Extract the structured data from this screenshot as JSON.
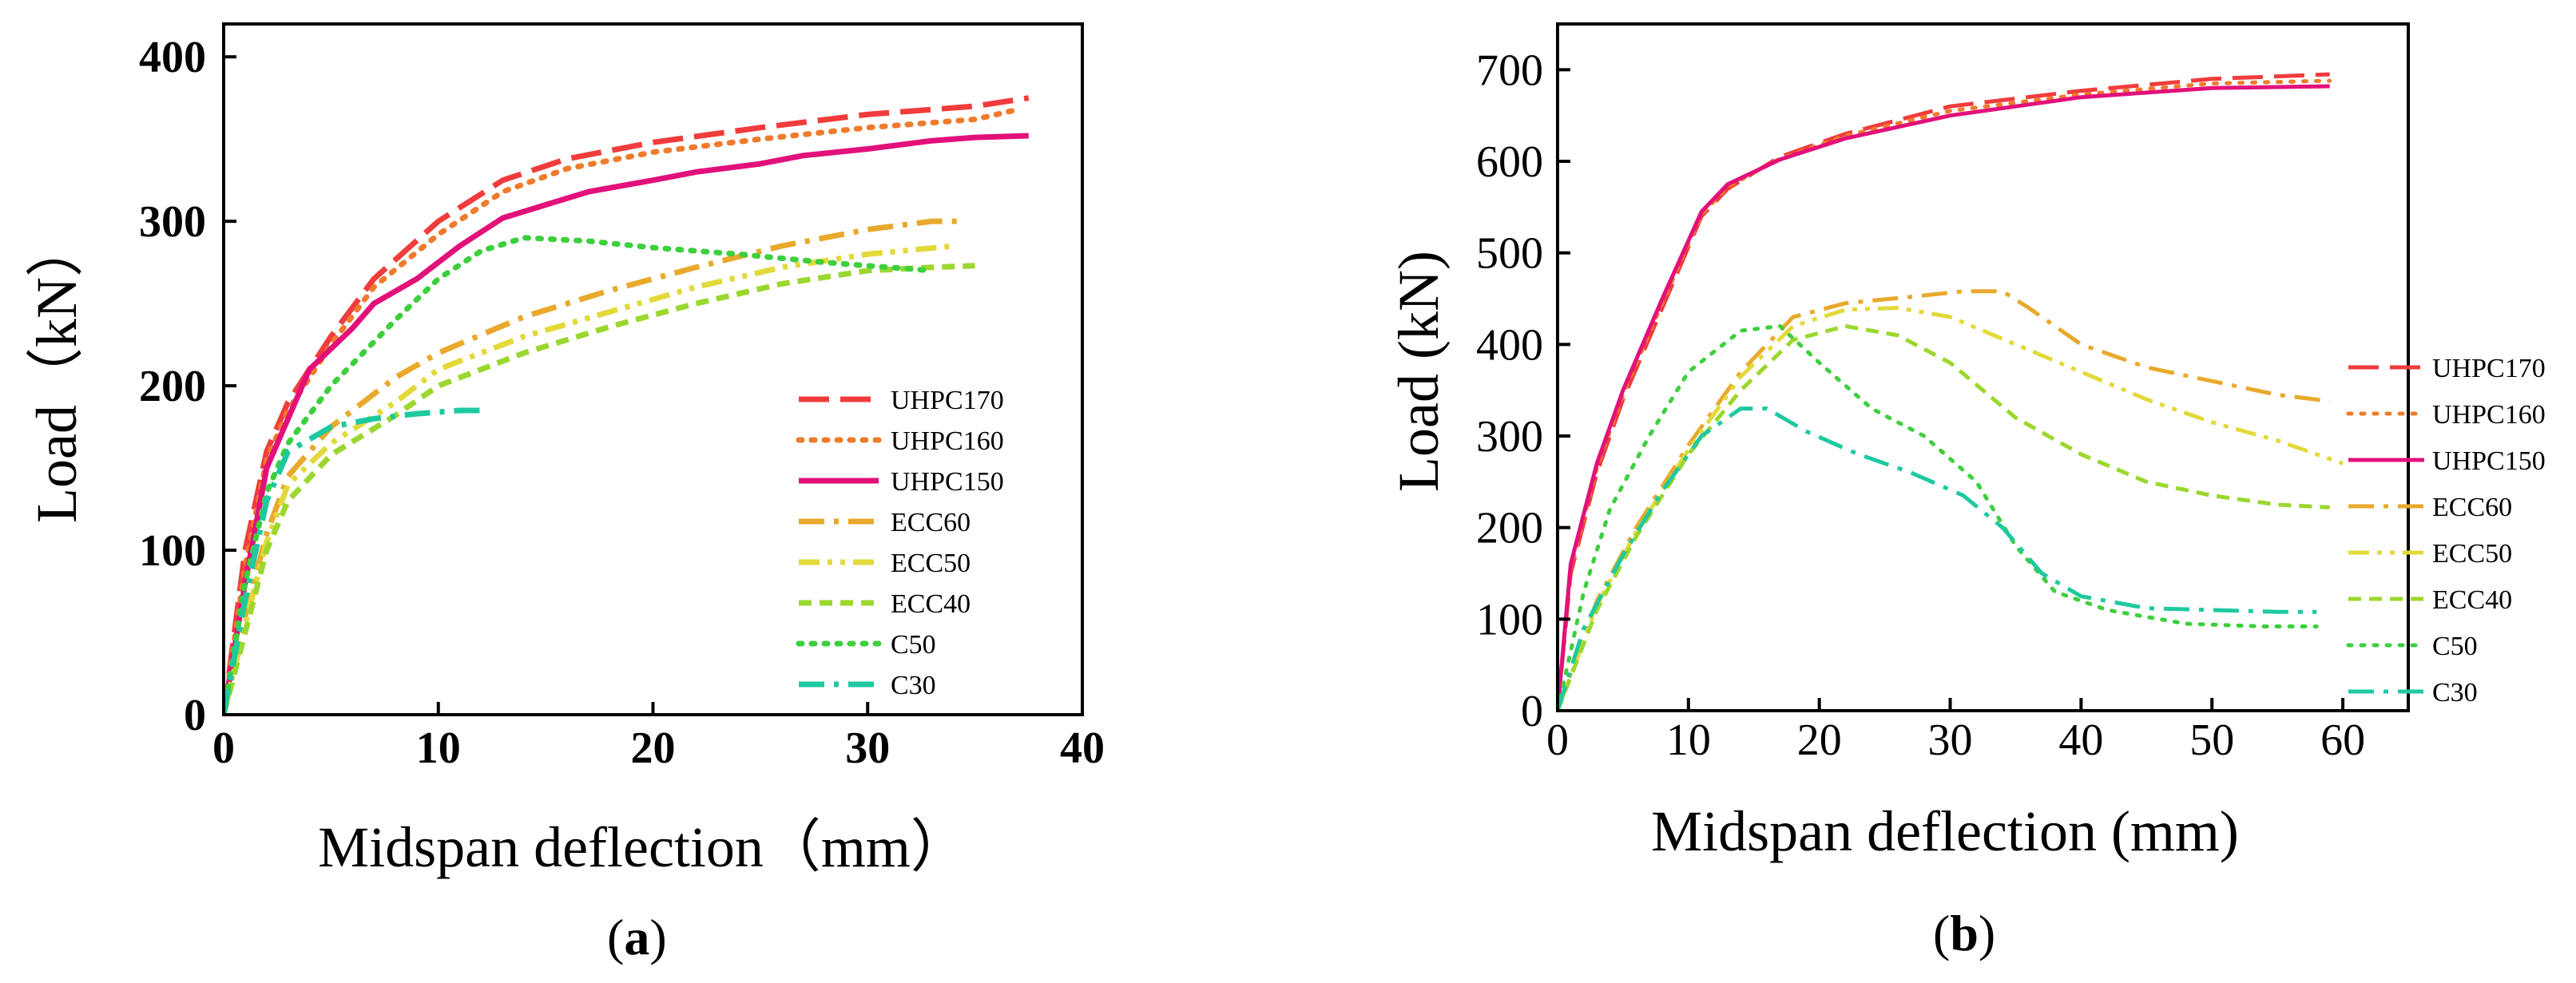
{
  "chart_data": [
    {
      "type": "line",
      "panel": "a",
      "subtitle_open": "(",
      "subtitle_letter": "a",
      "subtitle_close": ")",
      "xlabel": "Midspan deflection（mm）",
      "ylabel": "Load（kN）",
      "xlim": [
        0,
        40
      ],
      "ylim": [
        0,
        420
      ],
      "xticks": [
        0,
        10,
        20,
        30,
        40
      ],
      "yticks": [
        0,
        100,
        200,
        300,
        400
      ],
      "legend_position": "right",
      "series": [
        {
          "name": "UHPC170",
          "color": "#f03c3c",
          "dash": "long-dash",
          "points": [
            [
              0,
              0
            ],
            [
              1,
              100
            ],
            [
              2,
              160
            ],
            [
              3,
              190
            ],
            [
              5,
              230
            ],
            [
              7,
              265
            ],
            [
              10,
              300
            ],
            [
              13,
              325
            ],
            [
              16,
              338
            ],
            [
              20,
              348
            ],
            [
              25,
              357
            ],
            [
              30,
              365
            ],
            [
              35,
              370
            ],
            [
              37.5,
              375
            ]
          ]
        },
        {
          "name": "UHPC160",
          "color": "#ef7b2c",
          "dash": "dot",
          "points": [
            [
              0,
              0
            ],
            [
              1,
              90
            ],
            [
              2,
              155
            ],
            [
              3,
              185
            ],
            [
              5,
              225
            ],
            [
              7,
              260
            ],
            [
              10,
              292
            ],
            [
              13,
              318
            ],
            [
              16,
              332
            ],
            [
              20,
              342
            ],
            [
              25,
              350
            ],
            [
              30,
              357
            ],
            [
              35,
              362
            ],
            [
              37,
              368
            ]
          ]
        },
        {
          "name": "UHPC150",
          "color": "#e2117a",
          "dash": "solid",
          "points": [
            [
              0,
              0
            ],
            [
              1,
              80
            ],
            [
              2,
              150
            ],
            [
              3,
              180
            ],
            [
              4,
              210
            ],
            [
              6,
              235
            ],
            [
              7,
              250
            ],
            [
              9,
              265
            ],
            [
              11,
              285
            ],
            [
              13,
              302
            ],
            [
              15,
              310
            ],
            [
              17,
              318
            ],
            [
              20,
              325
            ],
            [
              22,
              330
            ],
            [
              25,
              335
            ],
            [
              27,
              340
            ],
            [
              30,
              344
            ],
            [
              33,
              349
            ],
            [
              35,
              351
            ],
            [
              37.5,
              352
            ]
          ]
        },
        {
          "name": "ECC60",
          "color": "#e8a92c",
          "dash": "dash-dot",
          "points": [
            [
              0,
              0
            ],
            [
              1,
              60
            ],
            [
              2,
              110
            ],
            [
              3,
              145
            ],
            [
              5,
              175
            ],
            [
              8,
              205
            ],
            [
              10,
              220
            ],
            [
              14,
              242
            ],
            [
              18,
              258
            ],
            [
              22,
              272
            ],
            [
              26,
              285
            ],
            [
              30,
              295
            ],
            [
              33,
              300
            ],
            [
              34.5,
              300
            ]
          ]
        },
        {
          "name": "ECC50",
          "color": "#e2d93a",
          "dash": "dash-dot-dot",
          "points": [
            [
              0,
              0
            ],
            [
              1,
              55
            ],
            [
              2,
              105
            ],
            [
              3,
              140
            ],
            [
              5,
              165
            ],
            [
              8,
              190
            ],
            [
              10,
              210
            ],
            [
              14,
              230
            ],
            [
              18,
              245
            ],
            [
              22,
              260
            ],
            [
              26,
              272
            ],
            [
              30,
              280
            ],
            [
              34,
              285
            ]
          ]
        },
        {
          "name": "ECC40",
          "color": "#9bd72e",
          "dash": "short-dash",
          "points": [
            [
              0,
              0
            ],
            [
              1,
              50
            ],
            [
              2,
              100
            ],
            [
              3,
              130
            ],
            [
              5,
              158
            ],
            [
              8,
              182
            ],
            [
              10,
              200
            ],
            [
              14,
              220
            ],
            [
              18,
              236
            ],
            [
              22,
              250
            ],
            [
              26,
              262
            ],
            [
              30,
              270
            ],
            [
              33,
              272
            ],
            [
              35,
              273
            ]
          ]
        },
        {
          "name": "C50",
          "color": "#3ecf3e",
          "dash": "dot",
          "points": [
            [
              0,
              0
            ],
            [
              1,
              80
            ],
            [
              2,
              135
            ],
            [
              3,
              165
            ],
            [
              5,
              200
            ],
            [
              8,
              240
            ],
            [
              10,
              265
            ],
            [
              12,
              282
            ],
            [
              14,
              290
            ],
            [
              17,
              288
            ],
            [
              20,
              284
            ],
            [
              24,
              280
            ],
            [
              28,
              275
            ],
            [
              31,
              272
            ],
            [
              33,
              270
            ]
          ]
        },
        {
          "name": "C30",
          "color": "#1ec9a0",
          "dash": "dash-dot",
          "points": [
            [
              0,
              0
            ],
            [
              1,
              70
            ],
            [
              2,
              130
            ],
            [
              3,
              160
            ],
            [
              5,
              175
            ],
            [
              7,
              180
            ],
            [
              9,
              183
            ],
            [
              11,
              185
            ],
            [
              12,
              185
            ]
          ]
        }
      ]
    },
    {
      "type": "line",
      "panel": "b",
      "subtitle_open": "(",
      "subtitle_letter": "b",
      "subtitle_close": ")",
      "xlabel": "Midspan deflection (mm)",
      "ylabel": "Load (kN)",
      "xlim": [
        0,
        65
      ],
      "ylim": [
        0,
        750
      ],
      "xticks": [
        0,
        10,
        20,
        30,
        40,
        50,
        60
      ],
      "yticks": [
        0,
        100,
        200,
        300,
        400,
        500,
        600,
        700
      ],
      "legend_position": "right",
      "series": [
        {
          "name": "UHPC170",
          "color": "#f03c3c",
          "dash": "long-dash",
          "points": [
            [
              0,
              0
            ],
            [
              1,
              150
            ],
            [
              3,
              260
            ],
            [
              5,
              340
            ],
            [
              8,
              440
            ],
            [
              11,
              540
            ],
            [
              13,
              570
            ],
            [
              17,
              605
            ],
            [
              22,
              630
            ],
            [
              30,
              660
            ],
            [
              40,
              677
            ],
            [
              50,
              690
            ],
            [
              59,
              695
            ]
          ]
        },
        {
          "name": "UHPC160",
          "color": "#ef7b2c",
          "dash": "dot",
          "points": [
            [
              0,
              0
            ],
            [
              1,
              155
            ],
            [
              3,
              265
            ],
            [
              5,
              345
            ],
            [
              8,
              445
            ],
            [
              11,
              542
            ],
            [
              13,
              572
            ],
            [
              17,
              603
            ],
            [
              22,
              628
            ],
            [
              30,
              655
            ],
            [
              40,
              673
            ],
            [
              50,
              685
            ],
            [
              59,
              688
            ]
          ]
        },
        {
          "name": "UHPC150",
          "color": "#e2117a",
          "dash": "solid",
          "points": [
            [
              0,
              0
            ],
            [
              1,
              160
            ],
            [
              3,
              270
            ],
            [
              5,
              350
            ],
            [
              8,
              450
            ],
            [
              11,
              545
            ],
            [
              13,
              575
            ],
            [
              17,
              602
            ],
            [
              22,
              625
            ],
            [
              30,
              650
            ],
            [
              40,
              670
            ],
            [
              50,
              680
            ],
            [
              59,
              682
            ]
          ]
        },
        {
          "name": "ECC60",
          "color": "#e8a92c",
          "dash": "dash-dot",
          "points": [
            [
              0,
              0
            ],
            [
              3,
              120
            ],
            [
              6,
              200
            ],
            [
              10,
              290
            ],
            [
              14,
              370
            ],
            [
              18,
              430
            ],
            [
              22,
              445
            ],
            [
              27,
              452
            ],
            [
              31,
              458
            ],
            [
              34,
              458
            ],
            [
              36,
              440
            ],
            [
              40,
              400
            ],
            [
              45,
              375
            ],
            [
              50,
              360
            ],
            [
              55,
              345
            ],
            [
              59,
              338
            ]
          ]
        },
        {
          "name": "ECC50",
          "color": "#e2d93a",
          "dash": "dash-dot-dot",
          "points": [
            [
              0,
              0
            ],
            [
              3,
              115
            ],
            [
              6,
              195
            ],
            [
              10,
              285
            ],
            [
              14,
              365
            ],
            [
              18,
              420
            ],
            [
              22,
              438
            ],
            [
              26,
              440
            ],
            [
              30,
              430
            ],
            [
              35,
              400
            ],
            [
              40,
              370
            ],
            [
              45,
              340
            ],
            [
              50,
              315
            ],
            [
              55,
              295
            ],
            [
              60,
              270
            ]
          ]
        },
        {
          "name": "ECC40",
          "color": "#9bd72e",
          "dash": "short-dash",
          "points": [
            [
              0,
              0
            ],
            [
              3,
              110
            ],
            [
              6,
              190
            ],
            [
              10,
              280
            ],
            [
              14,
              350
            ],
            [
              18,
              405
            ],
            [
              22,
              420
            ],
            [
              26,
              410
            ],
            [
              30,
              380
            ],
            [
              35,
              320
            ],
            [
              40,
              280
            ],
            [
              45,
              250
            ],
            [
              50,
              235
            ],
            [
              55,
              225
            ],
            [
              59,
              222
            ]
          ]
        },
        {
          "name": "C50",
          "color": "#3ecf3e",
          "dash": "dot",
          "points": [
            [
              0,
              0
            ],
            [
              2,
              130
            ],
            [
              4,
              220
            ],
            [
              7,
              300
            ],
            [
              10,
              370
            ],
            [
              14,
              415
            ],
            [
              17,
              420
            ],
            [
              20,
              380
            ],
            [
              24,
              330
            ],
            [
              28,
              300
            ],
            [
              32,
              250
            ],
            [
              35,
              180
            ],
            [
              38,
              130
            ],
            [
              42,
              110
            ],
            [
              48,
              95
            ],
            [
              54,
              92
            ],
            [
              58,
              92
            ]
          ]
        },
        {
          "name": "C30",
          "color": "#1ec9a0",
          "dash": "dash-dot",
          "points": [
            [
              0,
              0
            ],
            [
              2,
              90
            ],
            [
              5,
              170
            ],
            [
              8,
              240
            ],
            [
              11,
              300
            ],
            [
              14,
              330
            ],
            [
              16,
              330
            ],
            [
              19,
              305
            ],
            [
              23,
              280
            ],
            [
              27,
              260
            ],
            [
              31,
              235
            ],
            [
              34,
              200
            ],
            [
              37,
              150
            ],
            [
              40,
              125
            ],
            [
              45,
              112
            ],
            [
              50,
              110
            ],
            [
              55,
              108
            ],
            [
              58,
              108
            ]
          ]
        }
      ]
    }
  ]
}
